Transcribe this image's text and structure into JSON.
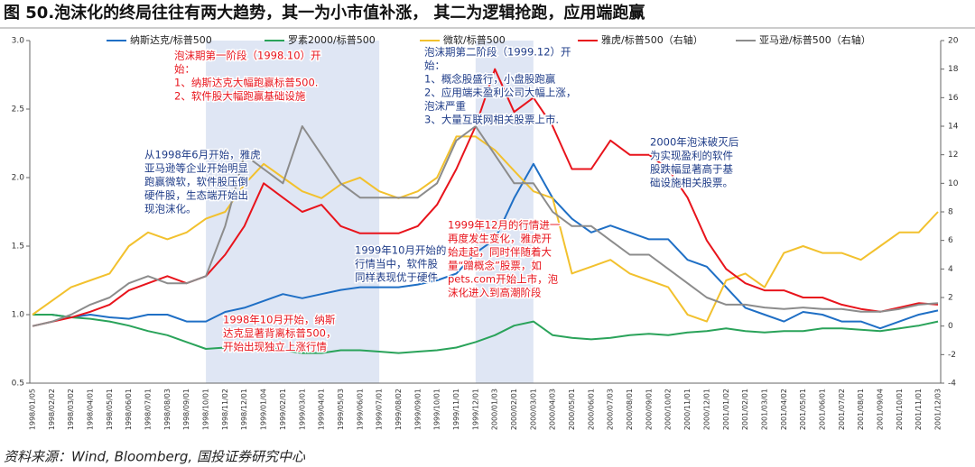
{
  "chart_data": {
    "type": "line",
    "title": "图 50.泡沫化的终局往往有两大趋势，其一为小市值补涨， 其二为逻辑抢跑，应用端跑赢",
    "source": "资料来源：Wind, Bloomberg, 国投证券研究中心",
    "x": [
      "1998/01/05",
      "1998/02/02",
      "1998/03/02",
      "1998/04/01",
      "1998/05/01",
      "1998/06/01",
      "1998/07/01",
      "1998/08/03",
      "1998/09/01",
      "1998/10/01",
      "1998/11/02",
      "1998/12/01",
      "1999/01/04",
      "1999/02/01",
      "1999/03/01",
      "1999/04/01",
      "1999/05/03",
      "1999/06/01",
      "1999/07/01",
      "1999/08/02",
      "1999/09/01",
      "1999/10/01",
      "1999/11/01",
      "1999/12/01",
      "2000/01/03",
      "2000/02/01",
      "2000/03/01",
      "2000/04/03",
      "2000/05/01",
      "2000/06/01",
      "2000/07/03",
      "2000/08/01",
      "2000/09/01",
      "2000/10/02",
      "2000/11/01",
      "2000/12/01",
      "2001/01/02",
      "2001/02/01",
      "2001/03/01",
      "2001/04/02",
      "2001/05/01",
      "2001/06/01",
      "2001/07/02",
      "2001/08/01",
      "2001/09/04",
      "2001/10/01",
      "2001/11/01",
      "2001/12/03"
    ],
    "ylim": [
      0.5,
      3.0
    ],
    "yticks": [
      0.5,
      {
        "value": 1,
        "label": "1.0"
      },
      1.5,
      {
        "value": 2,
        "label": "2.0"
      },
      2.5,
      {
        "value": 3,
        "label": "3.0"
      }
    ],
    "y2lim": [
      -4,
      20
    ],
    "y2ticks": [
      -4,
      -2,
      0,
      2,
      4,
      6,
      8,
      10,
      12,
      14,
      16,
      18,
      20
    ],
    "shaded": [
      [
        "1998/10/01",
        "1999/07/01"
      ],
      [
        "1999/12/01",
        "2000/03/01"
      ]
    ],
    "series": [
      {
        "name": "纳斯达克/标普500",
        "color": "#1f6fc5",
        "values": [
          1.0,
          1.0,
          0.98,
          1.0,
          0.98,
          0.97,
          1.0,
          1.0,
          0.95,
          0.95,
          1.02,
          1.05,
          1.1,
          1.15,
          1.12,
          1.15,
          1.18,
          1.2,
          1.2,
          1.2,
          1.22,
          1.25,
          1.3,
          1.45,
          1.55,
          1.85,
          2.1,
          1.85,
          1.7,
          1.6,
          1.65,
          1.6,
          1.55,
          1.55,
          1.4,
          1.35,
          1.2,
          1.05,
          1.0,
          0.95,
          1.02,
          1.0,
          0.95,
          0.95,
          0.9,
          0.95,
          1.0,
          1.03
        ]
      },
      {
        "name": "罗素2000/标普500",
        "color": "#2aa35a",
        "values": [
          1.0,
          1.0,
          0.98,
          0.97,
          0.95,
          0.92,
          0.88,
          0.85,
          0.8,
          0.75,
          0.76,
          0.78,
          0.76,
          0.74,
          0.72,
          0.72,
          0.74,
          0.74,
          0.73,
          0.72,
          0.73,
          0.74,
          0.76,
          0.8,
          0.85,
          0.92,
          0.95,
          0.85,
          0.83,
          0.82,
          0.83,
          0.85,
          0.86,
          0.85,
          0.87,
          0.88,
          0.9,
          0.88,
          0.87,
          0.88,
          0.88,
          0.9,
          0.9,
          0.89,
          0.88,
          0.9,
          0.92,
          0.95
        ]
      },
      {
        "name": "微软/标普500",
        "color": "#f2c12e",
        "values": [
          1.0,
          1.1,
          1.2,
          1.25,
          1.3,
          1.5,
          1.6,
          1.55,
          1.6,
          1.7,
          1.75,
          1.95,
          2.1,
          2.0,
          1.9,
          1.85,
          1.95,
          2.0,
          1.9,
          1.85,
          1.9,
          2.0,
          2.3,
          2.3,
          2.2,
          2.05,
          1.9,
          1.85,
          1.3,
          1.35,
          1.4,
          1.3,
          1.25,
          1.2,
          1.0,
          0.95,
          1.25,
          1.3,
          1.2,
          1.45,
          1.5,
          1.45,
          1.45,
          1.4,
          1.5,
          1.6,
          1.6,
          1.75
        ]
      },
      {
        "name": "雅虎/标普500（右轴）",
        "color": "#e8141c",
        "axis": "y2",
        "values": [
          0,
          0.3,
          0.6,
          1,
          1.5,
          2.5,
          3,
          3.5,
          3,
          3.5,
          5,
          7,
          10,
          9,
          8,
          8.5,
          7,
          6.5,
          6.5,
          6.5,
          7,
          8.5,
          11,
          14,
          18,
          15,
          16,
          14,
          11,
          11,
          13,
          12,
          12,
          11,
          9,
          6,
          4,
          3,
          2.5,
          2.5,
          2,
          2,
          1.5,
          1.2,
          1,
          1.3,
          1.6,
          1.5
        ]
      },
      {
        "name": "亚马逊/标普500（右轴）",
        "color": "#8c8c8c",
        "axis": "y2",
        "values": [
          0,
          0.3,
          0.8,
          1.5,
          2,
          3,
          3.5,
          3,
          3,
          3.5,
          7,
          12,
          11,
          10,
          14,
          12,
          10,
          9,
          9,
          9,
          9,
          10,
          13,
          14,
          12,
          10,
          10,
          8,
          7,
          7,
          6,
          5,
          5,
          4,
          3,
          2,
          1.5,
          1.5,
          1.3,
          1.2,
          1.3,
          1.2,
          1.2,
          1.0,
          1.0,
          1.2,
          1.5,
          1.6
        ]
      }
    ],
    "annotations": [
      {
        "color": "#e8141c",
        "lines": [
          "泡沫期第一阶段（1998.10）开",
          "始：",
          "1、纳斯达克大幅跑赢标普500.",
          "2、软件股大幅跑赢基础设施"
        ]
      },
      {
        "color": "#1f3c88",
        "lines": [
          "泡沫期第二阶段（1999.12）开",
          "始：",
          "1、概念股盛行，小盘股跑赢",
          "2、应用端未盈利公司大幅上涨，",
          "泡沫严重",
          "3、大量互联网相关股票上市."
        ]
      },
      {
        "color": "#1f3c88",
        "lines": [
          "从1998年6月开始，雅虎",
          "亚马逊等企业开始明显",
          "跑赢微软，软件股压倒",
          "硬件股，生态端开始出",
          "现泡沫化。"
        ]
      },
      {
        "color": "#1f3c88",
        "lines": [
          "2000年泡沫破灭后",
          "为实现盈利的软件",
          "股跌幅显著高于基",
          "础设施相关股票。"
        ]
      },
      {
        "color": "#1f3c88",
        "lines": [
          "1999年10月开始的",
          "行情当中，软件股",
          "同样表现优于硬件"
        ]
      },
      {
        "color": "#e8141c",
        "lines": [
          "1999年12月的行情进一",
          "再度发生变化，雅虎开",
          "始走起，同时伴随着大",
          "量“蹭概念”股票，如",
          "pets.com开始上市，泡",
          "沫化进入到高潮阶段"
        ]
      },
      {
        "color": "#e8141c",
        "lines": [
          "1998年10月开始，纳斯",
          "达克显著背离标普500，",
          "开始出现独立上涨行情"
        ]
      }
    ]
  }
}
